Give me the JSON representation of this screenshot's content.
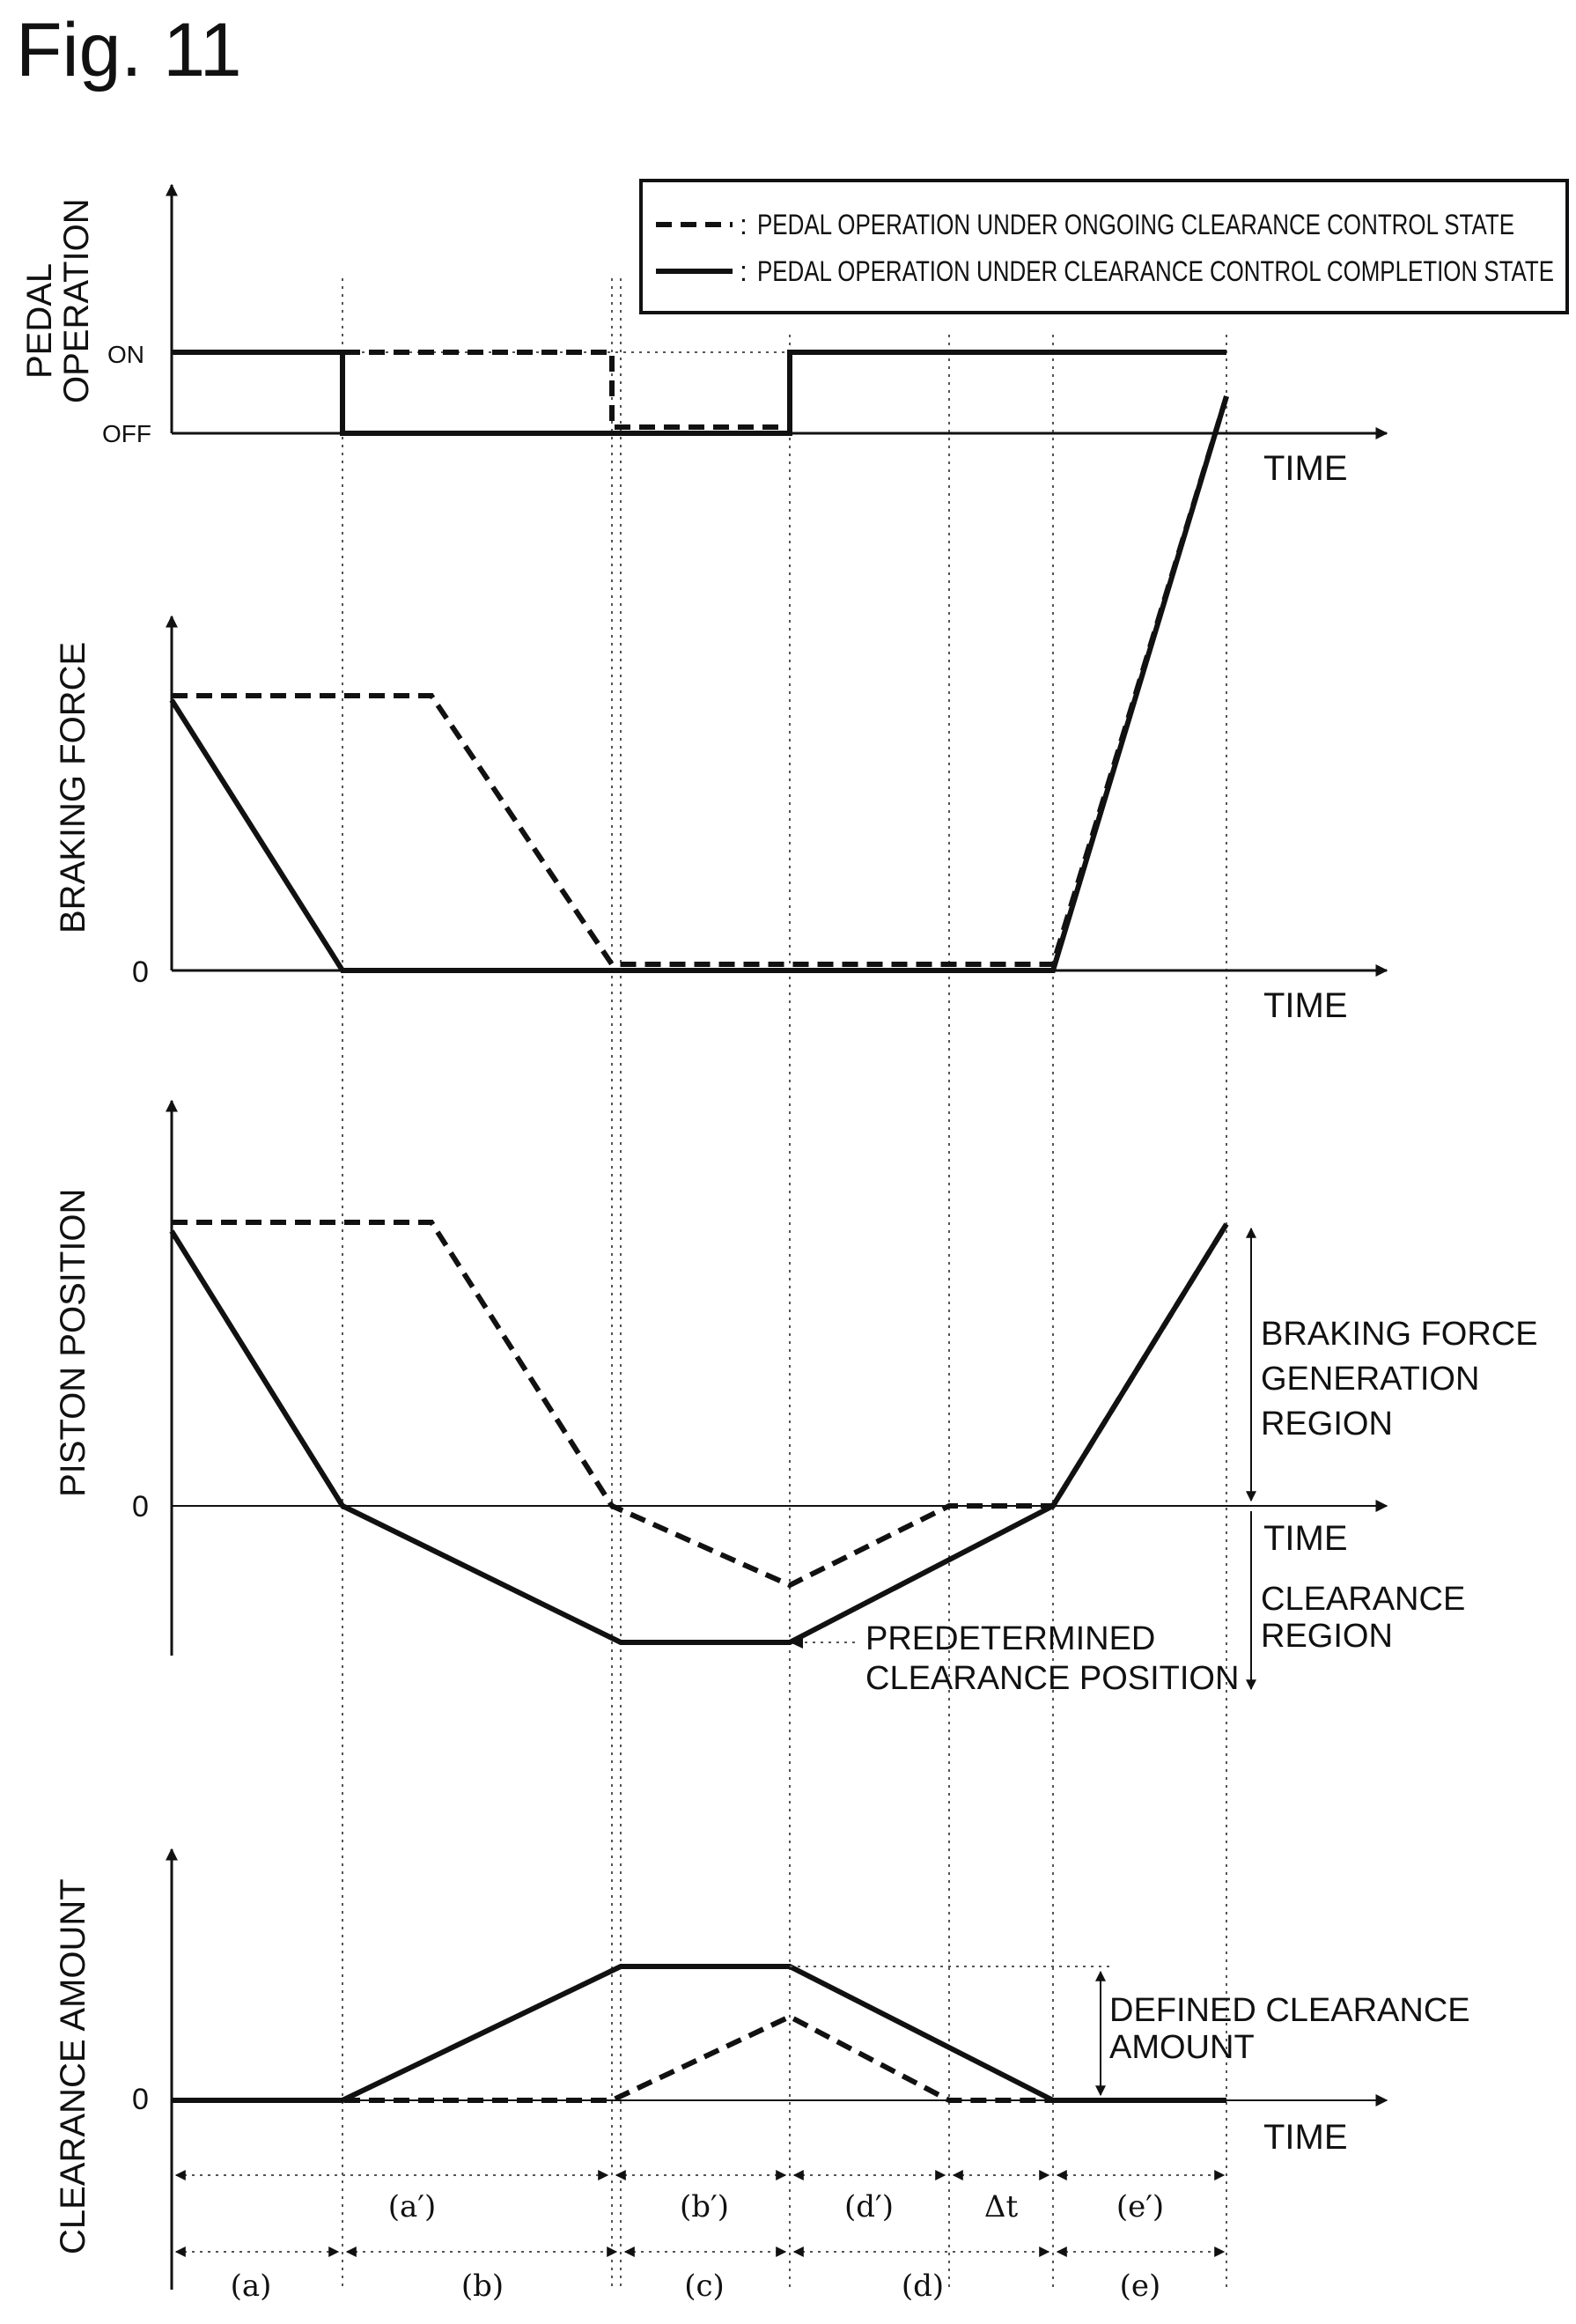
{
  "figure_title": "Fig. 11",
  "legend": {
    "dashed": "PEDAL OPERATION UNDER ONGOING CLEARANCE CONTROL STATE",
    "solid": "PEDAL OPERATION UNDER CLEARANCE CONTROL COMPLETION STATE",
    "separator": ":"
  },
  "time_label": "TIME",
  "panels": {
    "pedal": {
      "ylabel_line1": "PEDAL",
      "ylabel_line2": "OPERATION",
      "on": "ON",
      "off": "OFF"
    },
    "braking": {
      "ylabel": "BRAKING FORCE",
      "zero": "0"
    },
    "piston": {
      "ylabel": "PISTON POSITION",
      "zero": "0",
      "region_upper": [
        "BRAKING FORCE",
        "GENERATION",
        "REGION"
      ],
      "region_lower": [
        "CLEARANCE",
        "REGION"
      ],
      "annotation": [
        "PREDETERMINED",
        "CLEARANCE POSITION"
      ]
    },
    "clearance": {
      "ylabel": "CLEARANCE AMOUNT",
      "zero": "0",
      "annotation": [
        "DEFINED CLEARANCE",
        "AMOUNT"
      ]
    }
  },
  "intervals_upper": [
    "(a′)",
    "(b′)",
    "(d′)",
    "Δt",
    "(e′)"
  ],
  "intervals_lower": [
    "(a)",
    "(b)",
    "(c)",
    "(d)",
    "(e)"
  ]
}
